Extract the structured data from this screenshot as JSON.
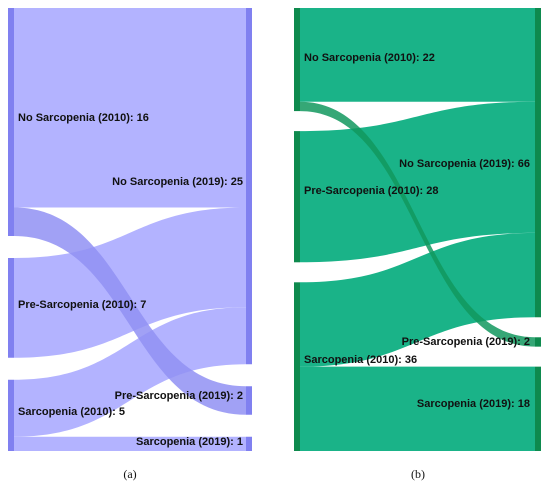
{
  "chart_data": [
    {
      "type": "sankey",
      "panel_label": "(a)",
      "colors": {
        "node": "#8080f0",
        "link": "#b3b3ff",
        "link_dark": "#9090f3"
      },
      "nodes": [
        {
          "id": "n2010",
          "label": "No Sarcopenia (2010): 16",
          "value": 16,
          "side": "left"
        },
        {
          "id": "p2010",
          "label": "Pre-Sarcopenia (2010): 7",
          "value": 7,
          "side": "left"
        },
        {
          "id": "s2010",
          "label": "Sarcopenia (2010): 5",
          "value": 5,
          "side": "left"
        },
        {
          "id": "n2019",
          "label": "No Sarcopenia (2019): 25",
          "value": 25,
          "side": "right"
        },
        {
          "id": "p2019",
          "label": "Pre-Sarcopenia (2019): 2",
          "value": 2,
          "side": "right"
        },
        {
          "id": "s2019",
          "label": "Sarcopenia (2019): 1",
          "value": 1,
          "side": "right"
        }
      ],
      "links": [
        {
          "source": "n2010",
          "target": "n2019",
          "value": 14
        },
        {
          "source": "n2010",
          "target": "p2019",
          "value": 2
        },
        {
          "source": "p2010",
          "target": "n2019",
          "value": 7
        },
        {
          "source": "s2010",
          "target": "n2019",
          "value": 4
        },
        {
          "source": "s2010",
          "target": "s2019",
          "value": 1
        }
      ]
    },
    {
      "type": "sankey",
      "panel_label": "(b)",
      "colors": {
        "node": "#0e8a4e",
        "link": "#1ab388",
        "link_dark": "#12985e"
      },
      "nodes": [
        {
          "id": "n2010",
          "label": "No Sarcopenia (2010): 22",
          "value": 22,
          "side": "left"
        },
        {
          "id": "p2010",
          "label": "Pre-Sarcopenia (2010): 28",
          "value": 28,
          "side": "left"
        },
        {
          "id": "s2010",
          "label": "Sarcopenia (2010): 36",
          "value": 36,
          "side": "left"
        },
        {
          "id": "n2019",
          "label": "No Sarcopenia (2019): 66",
          "value": 66,
          "side": "right"
        },
        {
          "id": "p2019",
          "label": "Pre-Sarcopenia (2019): 2",
          "value": 2,
          "side": "right"
        },
        {
          "id": "s2019",
          "label": "Sarcopenia (2019): 18",
          "value": 18,
          "side": "right"
        }
      ],
      "links": [
        {
          "source": "n2010",
          "target": "n2019",
          "value": 20
        },
        {
          "source": "n2010",
          "target": "p2019",
          "value": 2
        },
        {
          "source": "p2010",
          "target": "n2019",
          "value": 28
        },
        {
          "source": "s2010",
          "target": "n2019",
          "value": 18
        },
        {
          "source": "s2010",
          "target": "s2019",
          "value": 18
        }
      ]
    }
  ]
}
